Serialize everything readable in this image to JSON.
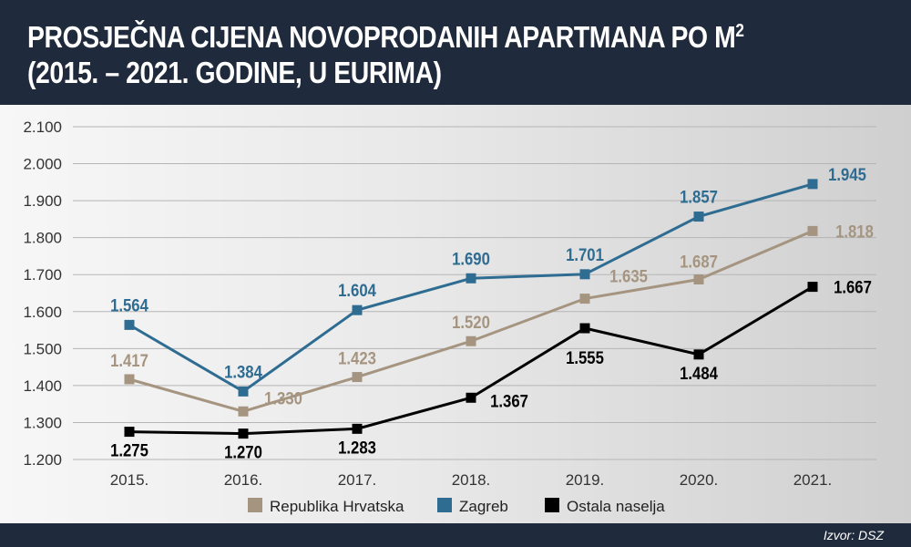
{
  "header": {
    "title_line1": "PROSJEČNA CIJENA NOVOPRODANIH APARTMANA PO M",
    "title_sup": "2",
    "title_line2": "(2015. – 2021. GODINE, U EURIMA)"
  },
  "footer": {
    "source": "Izvor: DSZ"
  },
  "chart_data": {
    "type": "line",
    "categories": [
      "2015.",
      "2016.",
      "2017.",
      "2018.",
      "2019.",
      "2020.",
      "2021."
    ],
    "ylim": [
      1200,
      2100
    ],
    "yticks": [
      1200,
      1300,
      1400,
      1500,
      1600,
      1700,
      1800,
      1900,
      2000,
      2100
    ],
    "ytick_labels": [
      "1.200",
      "1.300",
      "1.400",
      "1.500",
      "1.600",
      "1.700",
      "1.800",
      "1.900",
      "2.000",
      "2.100"
    ],
    "grid": true,
    "legend_position": "bottom",
    "series": [
      {
        "name": "Republika Hrvatska",
        "color": "#a59580",
        "values": [
          1417,
          1330,
          1423,
          1520,
          1635,
          1687,
          1818
        ],
        "labels": [
          "1.417",
          "1.330",
          "1.423",
          "1.520",
          "1.635",
          "1.687",
          "1.818"
        ]
      },
      {
        "name": "Zagreb",
        "color": "#2f6c92",
        "values": [
          1564,
          1384,
          1604,
          1690,
          1701,
          1857,
          1945
        ],
        "labels": [
          "1.564",
          "1.384",
          "1.604",
          "1.690",
          "1.701",
          "1.857",
          "1.945"
        ]
      },
      {
        "name": "Ostala naselja",
        "color": "#000000",
        "values": [
          1275,
          1270,
          1283,
          1367,
          1555,
          1484,
          1667
        ],
        "labels": [
          "1.275",
          "1.270",
          "1.283",
          "1.367",
          "1.555",
          "1.484",
          "1.667"
        ]
      }
    ]
  }
}
